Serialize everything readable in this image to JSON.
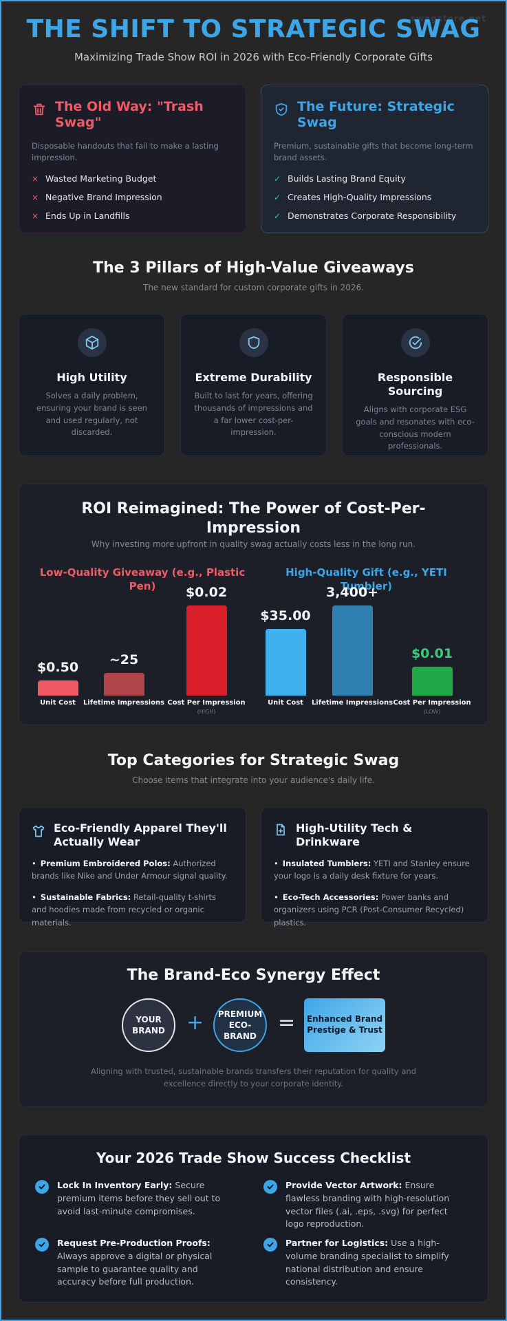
{
  "watermark": "swagstore.net",
  "hero": {
    "title": "THE SHIFT TO STRATEGIC SWAG",
    "subtitle": "Maximizing Trade Show ROI in 2026 with Eco-Friendly Corporate Gifts"
  },
  "comparison": {
    "old": {
      "title": "The Old Way: \"Trash Swag\"",
      "desc": "Disposable handouts that fail to make a lasting impression.",
      "items": [
        "Wasted Marketing Budget",
        "Negative Brand Impression",
        "Ends Up in Landfills"
      ],
      "icon": "trash-icon",
      "mark": "×"
    },
    "future": {
      "title": "The Future: Strategic Swag",
      "desc": "Premium, sustainable gifts that become long-term brand assets.",
      "items": [
        "Builds Lasting Brand Equity",
        "Creates High-Quality Impressions",
        "Demonstrates Corporate Responsibility"
      ],
      "icon": "shield-icon",
      "mark": "✓"
    }
  },
  "pillars": {
    "title": "The 3 Pillars of High-Value Giveaways",
    "subtitle": "The new standard for custom corporate gifts in 2026.",
    "items": [
      {
        "title": "High Utility",
        "desc": "Solves a daily problem, ensuring your brand is seen and used regularly, not discarded.",
        "icon": "cube-icon"
      },
      {
        "title": "Extreme Durability",
        "desc": "Built to last for years, offering thousands of impressions and a far lower cost-per-impression.",
        "icon": "shield-icon"
      },
      {
        "title": "Responsible Sourcing",
        "desc": "Aligns with corporate ESG goals and resonates with eco-conscious modern professionals.",
        "icon": "check-circle-icon"
      }
    ]
  },
  "roi": {
    "title": "ROI Reimagined: The Power of Cost-Per-Impression",
    "subtitle": "Why investing more upfront in quality swag actually costs less in the long run."
  },
  "chart_data": {
    "type": "bar",
    "groups": [
      {
        "name": "Low-Quality Giveaway (e.g., Plastic Pen)",
        "color": "#ef5b66",
        "bars": [
          {
            "category": "Unit Cost",
            "label": "$0.50",
            "level": 0.17,
            "color": "#f05a63"
          },
          {
            "category": "Lifetime Impressions",
            "label": "~25",
            "level": 0.25,
            "color": "#b0444b"
          },
          {
            "category": "Cost Per Impression",
            "label": "$0.02",
            "note": "(HIGH)",
            "level": 1.0,
            "color": "#d81f2a"
          }
        ]
      },
      {
        "name": "High-Quality Gift (e.g., YETI Tumbler)",
        "color": "#3ea6e6",
        "bars": [
          {
            "category": "Unit Cost",
            "label": "$35.00",
            "level": 0.74,
            "color": "#3eb1ee"
          },
          {
            "category": "Lifetime Impressions",
            "label": "3,400+",
            "level": 1.0,
            "color": "#2f7fb0"
          },
          {
            "category": "Cost Per Impression",
            "label": "$0.01",
            "note": "(LOW)",
            "level": 0.32,
            "color": "#21a947",
            "label_color": "#3fc97a"
          }
        ]
      }
    ]
  },
  "categories": {
    "title": "Top Categories for Strategic Swag",
    "subtitle": "Choose items that integrate into your audience's daily life.",
    "cards": [
      {
        "title": "Eco-Friendly Apparel They'll Actually Wear",
        "icon": "shirt-icon",
        "items": [
          {
            "bold": "Premium Embroidered Polos:",
            "text": " Authorized brands like Nike and Under Armour signal quality."
          },
          {
            "bold": "Sustainable Fabrics:",
            "text": " Retail-quality t-shirts and hoodies made from recycled or organic materials."
          }
        ]
      },
      {
        "title": "High-Utility Tech & Drinkware",
        "icon": "document-plus-icon",
        "items": [
          {
            "bold": "Insulated Tumblers:",
            "text": " YETI and Stanley ensure your logo is a daily desk fixture for years."
          },
          {
            "bold": "Eco-Tech Accessories:",
            "text": " Power banks and organizers using PCR (Post-Consumer Recycled) plastics."
          }
        ]
      }
    ]
  },
  "synergy": {
    "title": "The Brand-Eco Synergy Effect",
    "your_brand": "YOUR BRAND",
    "plus": "+",
    "eco_brand": "PREMIUM ECO-BRAND",
    "equals": "=",
    "result": "Enhanced Brand Prestige & Trust",
    "note": "Aligning with trusted, sustainable brands transfers their reputation for quality and excellence directly to your corporate identity."
  },
  "checklist": {
    "title": "Your 2026 Trade Show Success Checklist",
    "items": [
      {
        "bold": "Lock In Inventory Early:",
        "text": " Secure premium items before they sell out to avoid last-minute compromises."
      },
      {
        "bold": "Provide Vector Artwork:",
        "text": " Ensure flawless branding with high-resolution vector files (.ai, .eps, .svg) for perfect logo reproduction."
      },
      {
        "bold": "Request Pre-Production Proofs:",
        "text": " Always approve a digital or physical sample to guarantee quality and accuracy before full production."
      },
      {
        "bold": "Partner for Logistics:",
        "text": " Use a high-volume branding specialist to simplify national distribution and ensure consistency."
      }
    ]
  }
}
